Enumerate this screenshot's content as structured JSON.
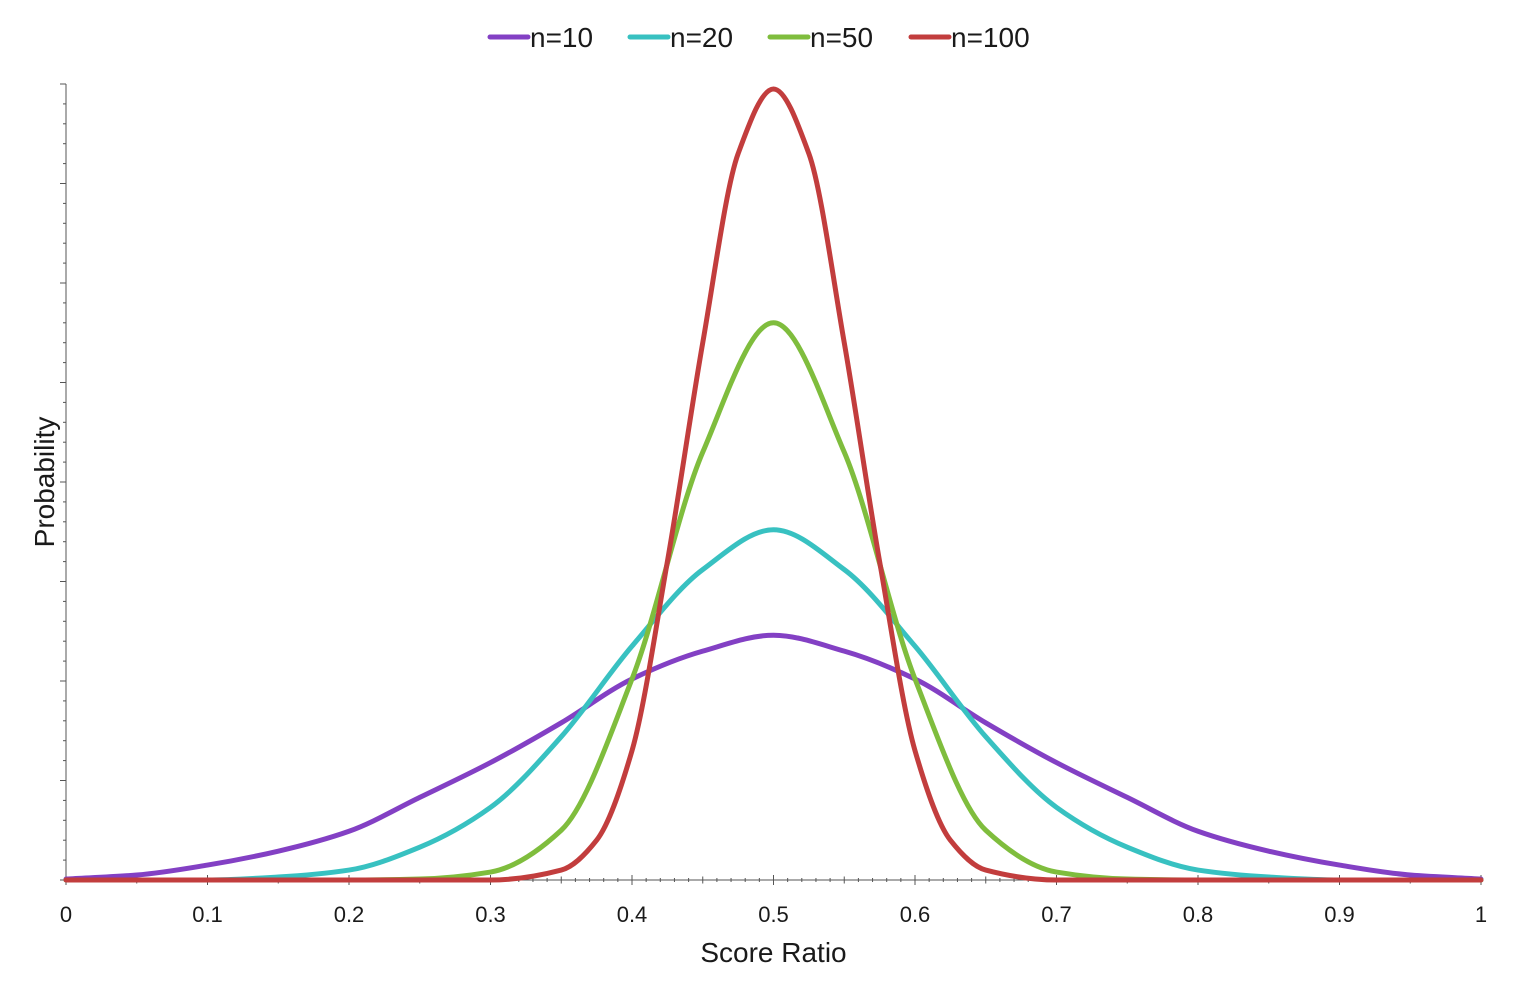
{
  "chart_data": {
    "type": "line",
    "title": "",
    "xlabel": "Score Ratio",
    "ylabel": "Probability",
    "xlim": [
      0,
      1
    ],
    "ylim": [
      0,
      8
    ],
    "x_ticks": [
      {
        "value": 0,
        "label": "0"
      },
      {
        "value": 0.1,
        "label": "0.1"
      },
      {
        "value": 0.2,
        "label": "0.2"
      },
      {
        "value": 0.3,
        "label": "0.3"
      },
      {
        "value": 0.4,
        "label": "0.4"
      },
      {
        "value": 0.5,
        "label": "0.5"
      },
      {
        "value": 0.6,
        "label": "0.6"
      },
      {
        "value": 0.7,
        "label": "0.7"
      },
      {
        "value": 0.8,
        "label": "0.8"
      },
      {
        "value": 0.9,
        "label": "0.9"
      },
      {
        "value": 1,
        "label": "1"
      }
    ],
    "y_ticks_labeled": false,
    "grid": false,
    "legend_position": "top-center",
    "series": [
      {
        "name": "n=10",
        "color": "#8340c4",
        "x": [
          0,
          0.05,
          0.1,
          0.15,
          0.2,
          0.25,
          0.3,
          0.35,
          0.4,
          0.45,
          0.5,
          0.55,
          0.6,
          0.65,
          0.7,
          0.75,
          0.8,
          0.85,
          0.9,
          0.95,
          1
        ],
        "values": [
          0.01,
          0.05,
          0.15,
          0.29,
          0.49,
          0.83,
          1.18,
          1.58,
          2.02,
          2.3,
          2.46,
          2.3,
          2.02,
          1.58,
          1.18,
          0.83,
          0.49,
          0.29,
          0.15,
          0.05,
          0.01
        ]
      },
      {
        "name": "n=20",
        "color": "#38c1c1",
        "x": [
          0,
          0.1,
          0.15,
          0.2,
          0.25,
          0.3,
          0.35,
          0.4,
          0.45,
          0.5,
          0.55,
          0.6,
          0.65,
          0.7,
          0.75,
          0.8,
          0.85,
          0.9,
          1
        ],
        "values": [
          0.0,
          0.0,
          0.03,
          0.1,
          0.33,
          0.73,
          1.44,
          2.35,
          3.12,
          3.52,
          3.12,
          2.35,
          1.44,
          0.73,
          0.33,
          0.1,
          0.03,
          0.0,
          0.0
        ]
      },
      {
        "name": "n=50",
        "color": "#7fbd3d",
        "x": [
          0,
          0.2,
          0.25,
          0.3,
          0.35,
          0.4,
          0.45,
          0.5,
          0.55,
          0.6,
          0.65,
          0.7,
          0.75,
          0.8,
          1
        ],
        "values": [
          0.0,
          0.0,
          0.01,
          0.08,
          0.5,
          2.02,
          4.3,
          5.6,
          4.3,
          2.02,
          0.5,
          0.08,
          0.01,
          0.0,
          0.0
        ]
      },
      {
        "name": "n=100",
        "color": "#c23d3d",
        "x": [
          0,
          0.25,
          0.3,
          0.35,
          0.375,
          0.4,
          0.425,
          0.45,
          0.475,
          0.5,
          0.525,
          0.55,
          0.575,
          0.6,
          0.625,
          0.65,
          0.7,
          0.75,
          1
        ],
        "values": [
          0.0,
          0.0,
          0.0,
          0.1,
          0.4,
          1.3,
          3.2,
          5.4,
          7.3,
          7.95,
          7.3,
          5.4,
          3.2,
          1.3,
          0.4,
          0.1,
          0.0,
          0.0,
          0.0
        ]
      }
    ]
  }
}
